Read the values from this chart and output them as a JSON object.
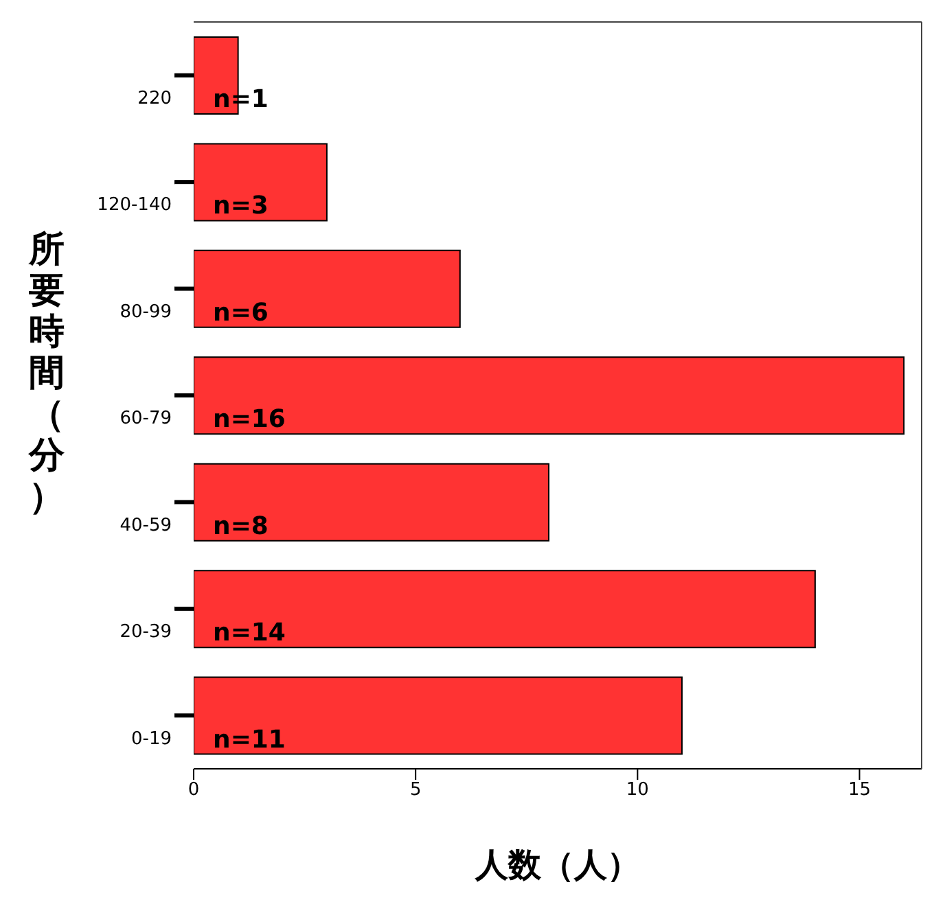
{
  "chart_data": {
    "type": "bar",
    "orientation": "horizontal",
    "xlabel": "人数（人）",
    "ylabel": "所要時間（分）",
    "categories": [
      "220",
      "120-140",
      "80-99",
      "60-79",
      "40-59",
      "20-39",
      "0-19"
    ],
    "values": [
      1,
      3,
      6,
      16,
      8,
      14,
      11
    ],
    "value_labels": [
      "n=1",
      "n=3",
      "n=6",
      "n=16",
      "n=8",
      "n=14",
      "n=11"
    ],
    "color": "#ff3333",
    "xlim": [
      0,
      16.4
    ],
    "xticks": [
      0,
      5,
      10,
      15
    ],
    "grid": false,
    "legend": false
  }
}
